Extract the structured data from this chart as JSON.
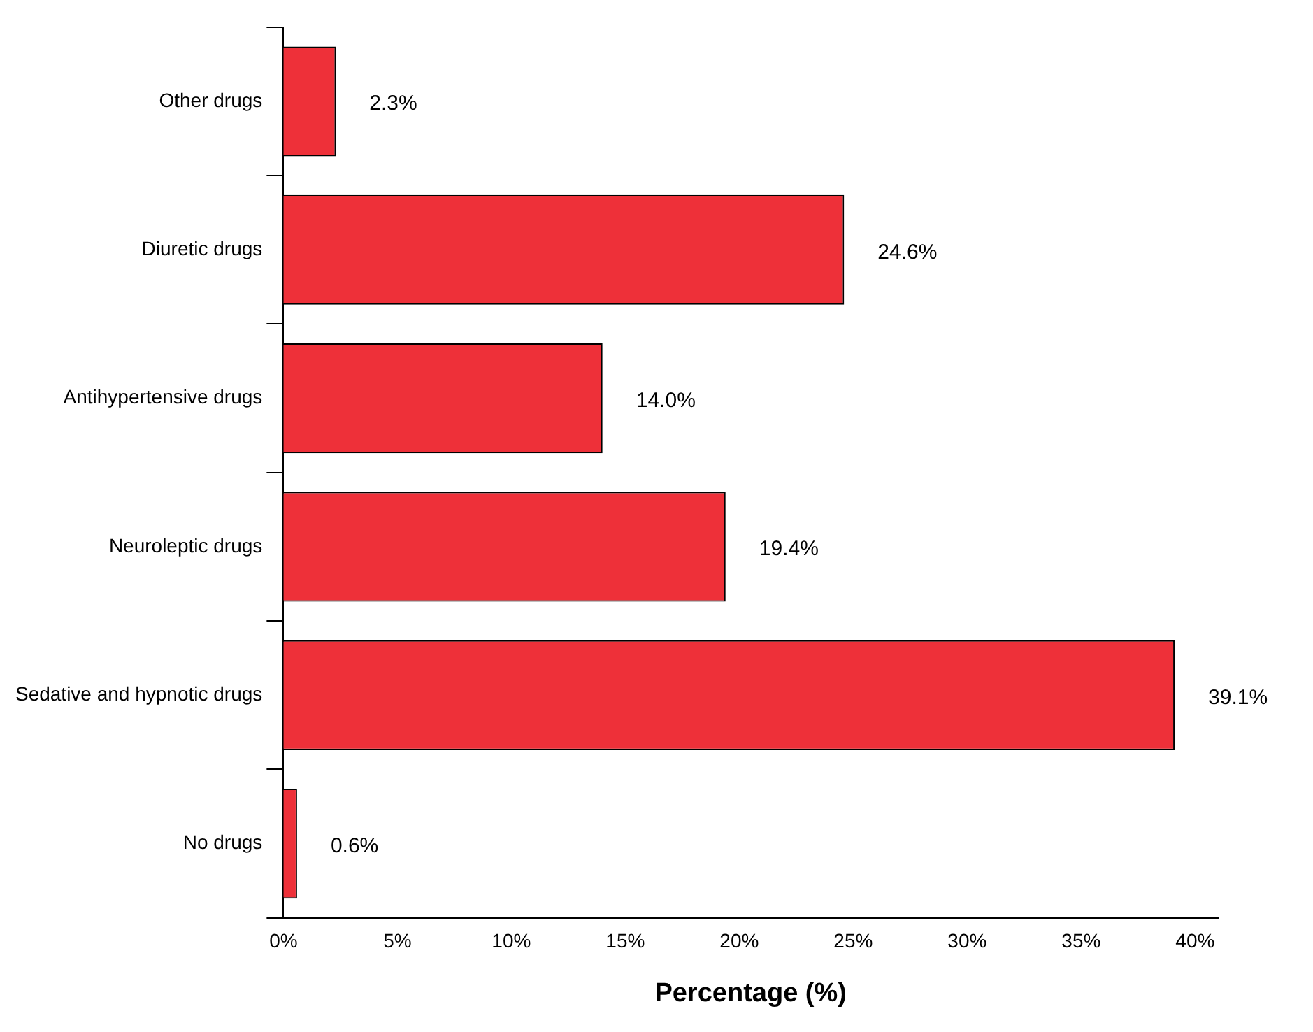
{
  "chart_data": {
    "type": "bar",
    "orientation": "horizontal",
    "xlabel": "Percentage (%)",
    "categories": [
      "Other drugs",
      "Diuretic drugs",
      "Antihypertensive drugs",
      "Neuroleptic drugs",
      "Sedative and hypnotic drugs",
      "No drugs"
    ],
    "values": [
      2.3,
      24.6,
      14.0,
      19.4,
      39.1,
      0.6
    ],
    "value_labels": [
      "2.3%",
      "24.6%",
      "14.0%",
      "19.4%",
      "39.1%",
      "0.6%"
    ],
    "color": "#ee3039",
    "xlim": [
      0,
      41
    ],
    "xticks": [
      {
        "value": 0,
        "label": "0%"
      },
      {
        "value": 5,
        "label": "5%"
      },
      {
        "value": 10,
        "label": "10%"
      },
      {
        "value": 15,
        "label": "15%"
      },
      {
        "value": 20,
        "label": "20%"
      },
      {
        "value": 25,
        "label": "25%"
      },
      {
        "value": 30,
        "label": "30%"
      },
      {
        "value": 35,
        "label": "35%"
      },
      {
        "value": 40,
        "label": "40%"
      }
    ],
    "grid": false,
    "legend": false
  }
}
